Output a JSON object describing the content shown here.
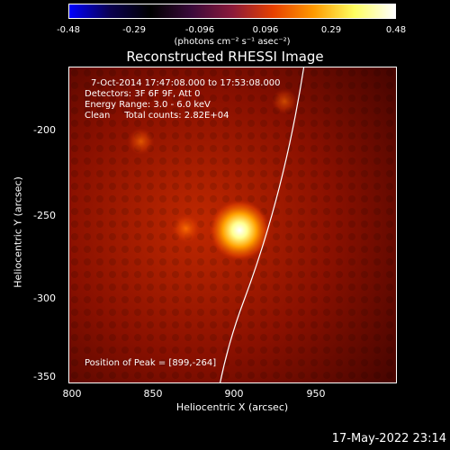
{
  "colorbar": {
    "ticks": [
      "-0.48",
      "-0.29",
      "-0.096",
      "0.096",
      "0.29",
      "0.48"
    ],
    "units": "(photons cm⁻² s⁻¹ asec⁻²)",
    "colors": [
      "#0000ff",
      "#0a0050",
      "#000000",
      "#3a0a3a",
      "#8a1a3a",
      "#e64000",
      "#ff9a00",
      "#ffff60",
      "#ffffff"
    ]
  },
  "title": "Reconstructed RHESSI Image",
  "info": {
    "time_range": "7-Oct-2014 17:47:08.000 to 17:53:08.000",
    "detectors": "Detectors: 3F 6F 9F, Att 0",
    "energy": "Energy Range: 3.0 - 6.0 keV",
    "clean": "Clean     Total counts: 2.82E+04",
    "peak": "Position of Peak = [899,-264]"
  },
  "axes": {
    "x_ticks": [
      "800",
      "850",
      "900",
      "950"
    ],
    "y_ticks": [
      "-200",
      "-250",
      "-300",
      "-350"
    ],
    "xlabel": "Heliocentric X (arcsec)",
    "ylabel": "Heliocentric Y (arcsec)",
    "x_range": [
      800,
      990
    ],
    "y_range": [
      -352,
      -170
    ]
  },
  "peak": {
    "x": 899,
    "y": -264
  },
  "secondary_sources": [
    {
      "x": 868,
      "y": -263,
      "strength": 0.45
    },
    {
      "x": 842,
      "y": -213,
      "strength": 0.35
    },
    {
      "x": 925,
      "y": -190,
      "strength": 0.3
    }
  ],
  "footer": "17-May-2022 23:14"
}
